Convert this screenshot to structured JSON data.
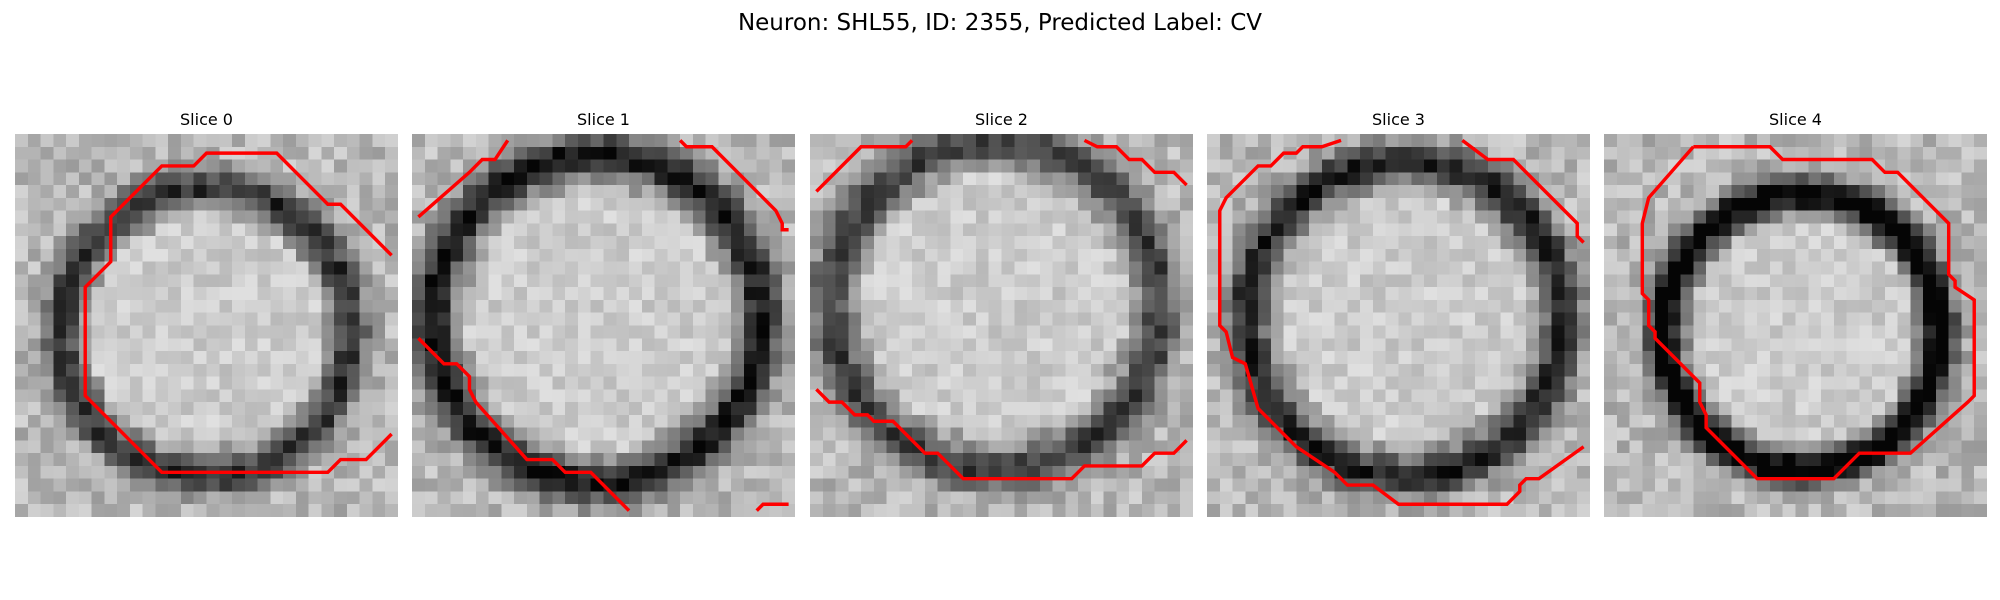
{
  "figure": {
    "title": "Neuron: SHL55, ID: 2355, Predicted Label: CV",
    "neuron": "SHL55",
    "id": 2355,
    "predicted_label": "CV"
  },
  "panels": [
    {
      "title": "Slice 0",
      "ring_darkness": 0.55,
      "contour_color": "#ff0000"
    },
    {
      "title": "Slice 1",
      "ring_darkness": 0.65,
      "contour_color": "#ff0000"
    },
    {
      "title": "Slice 2",
      "ring_darkness": 0.5,
      "contour_color": "#ff0000"
    },
    {
      "title": "Slice 3",
      "ring_darkness": 0.62,
      "contour_color": "#ff0000"
    },
    {
      "title": "Slice 4",
      "ring_darkness": 0.8,
      "contour_color": "#ff0000"
    }
  ],
  "colormap": "gray"
}
